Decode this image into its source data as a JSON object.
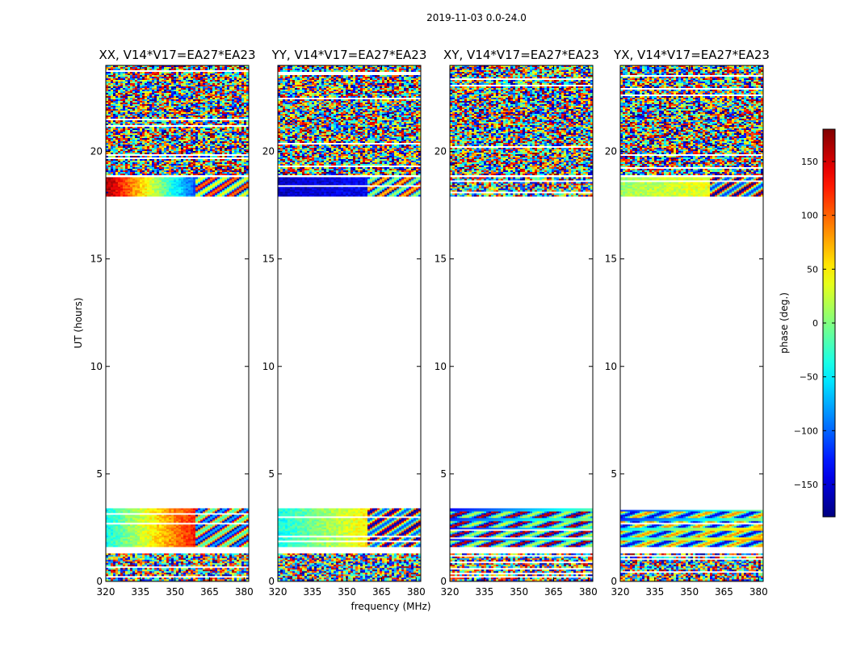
{
  "figure": {
    "suptitle": "2019-11-03 0.0-24.0",
    "xlabel": "frequency (MHz)",
    "ylabel": "UT (hours)",
    "colorbar_label": "phase (deg.)"
  },
  "chart_data": {
    "type": "heatmap",
    "x_range": [
      320,
      382
    ],
    "y_range": [
      0,
      24
    ],
    "x_ticks": [
      320,
      335,
      350,
      365,
      380
    ],
    "y_ticks": [
      0,
      5,
      10,
      15,
      20
    ],
    "colorbar": {
      "colormap": "jet",
      "range": [
        -180,
        180
      ],
      "ticks": [
        150,
        100,
        50,
        0,
        -50,
        -100,
        -150
      ],
      "tick_labels": [
        "150",
        "100",
        "50",
        "0",
        "−50",
        "−100",
        "−150"
      ]
    },
    "panels": [
      {
        "title": "XX, V14*V17=EA27*EA23",
        "blocks": [
          {
            "y0": 0.0,
            "y1": 1.3,
            "style": "noisy"
          },
          {
            "y0": 1.6,
            "y1": 3.4,
            "style": "coherent",
            "phase_low": -40,
            "phase_high": 130
          },
          {
            "y0": 17.9,
            "y1": 18.8,
            "style": "coherent",
            "phase_low": 170,
            "phase_high": -110
          },
          {
            "y0": 18.9,
            "y1": 24.0,
            "style": "noisy"
          }
        ]
      },
      {
        "title": "YY, V14*V17=EA27*EA23",
        "blocks": [
          {
            "y0": 0.0,
            "y1": 1.3,
            "style": "noisy"
          },
          {
            "y0": 1.6,
            "y1": 3.4,
            "style": "coherent",
            "phase_low": -40,
            "phase_high": 50
          },
          {
            "y0": 17.9,
            "y1": 18.8,
            "style": "coherent",
            "phase_low": -155,
            "phase_high": -140
          },
          {
            "y0": 18.9,
            "y1": 24.0,
            "style": "noisy"
          }
        ]
      },
      {
        "title": "XY, V14*V17=EA27*EA23",
        "blocks": [
          {
            "y0": 0.0,
            "y1": 1.3,
            "style": "noisy"
          },
          {
            "y0": 1.6,
            "y1": 3.4,
            "style": "banded",
            "phase_low": -150,
            "phase_high": -90
          },
          {
            "y0": 17.9,
            "y1": 18.8,
            "style": "noisy"
          },
          {
            "y0": 18.9,
            "y1": 24.0,
            "style": "noisy"
          }
        ]
      },
      {
        "title": "YX, V14*V17=EA27*EA23",
        "blocks": [
          {
            "y0": 0.0,
            "y1": 1.3,
            "style": "noisy"
          },
          {
            "y0": 1.6,
            "y1": 3.4,
            "style": "banded",
            "phase_low": -70,
            "phase_high": -30
          },
          {
            "y0": 17.9,
            "y1": 18.8,
            "style": "coherent",
            "phase_low": 10,
            "phase_high": 40
          },
          {
            "y0": 18.9,
            "y1": 24.0,
            "style": "noisy"
          }
        ]
      }
    ]
  }
}
